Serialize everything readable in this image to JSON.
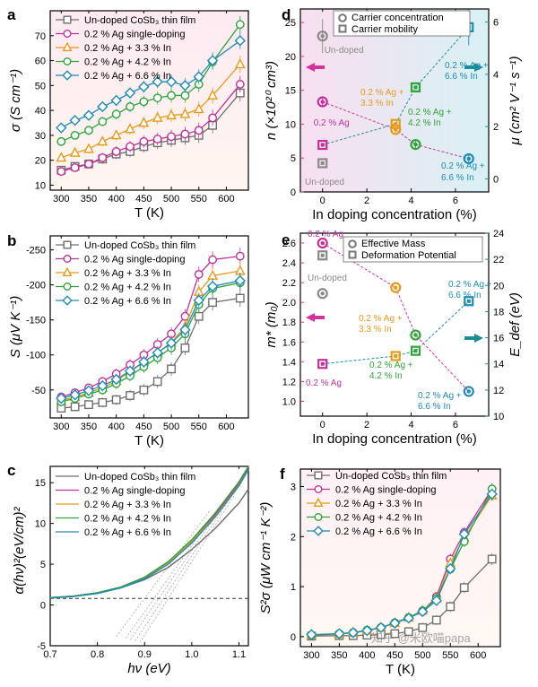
{
  "watermark": "知乎 @米欧喵papa",
  "colors": {
    "gray": "#6f6f6f",
    "magenta": "#c0329a",
    "orange": "#e79a19",
    "green": "#2ea43a",
    "blue": "#1f8bb5",
    "teal": "#1a8f96",
    "nAxis": "#d8309a",
    "muAxis": "#1a8f96"
  },
  "legend_series": [
    "Un-doped CoSb₃ thin film",
    "0.2 % Ag single-doping",
    "0.2 % Ag + 3.3 % In",
    "0.2 % Ag + 4.2 % In",
    "0.2 % Ag + 6.6 % In"
  ],
  "chart_data": [
    {
      "id": "a",
      "panel_label": "a",
      "type": "line",
      "xlabel": "T (K)",
      "ylabel": "σ (S cm⁻¹)",
      "xlim": [
        280,
        640
      ],
      "ylim": [
        8,
        80
      ],
      "xticks": [
        300,
        350,
        400,
        450,
        500,
        550,
        600
      ],
      "yticks": [
        10,
        20,
        30,
        40,
        50,
        60,
        70
      ],
      "x": [
        300,
        325,
        350,
        375,
        400,
        425,
        450,
        475,
        500,
        525,
        550,
        575,
        625
      ],
      "series": [
        {
          "name": "Un-doped CoSb₃ thin film",
          "values": [
            16,
            17.5,
            18.5,
            20.5,
            22.5,
            23.5,
            25.5,
            27,
            28,
            29,
            30,
            34,
            47
          ]
        },
        {
          "name": "0.2 % Ag single-doping",
          "values": [
            15.5,
            17,
            18.5,
            21,
            23.5,
            25.5,
            27.5,
            28.5,
            29.5,
            30.5,
            32,
            37,
            50.5
          ]
        },
        {
          "name": "0.2 % Ag + 3.3 % In",
          "values": [
            21,
            23,
            24.5,
            27.5,
            30,
            32.5,
            35,
            37,
            38,
            38.5,
            40.5,
            46,
            58.5
          ]
        },
        {
          "name": "0.2 % Ag + 4.2 % In",
          "values": [
            27.5,
            30,
            32,
            35.5,
            38.5,
            41.5,
            43.5,
            45,
            46,
            46,
            50.5,
            59.5,
            74.5
          ]
        },
        {
          "name": "0.2 % Ag + 6.6 % In",
          "values": [
            33,
            36,
            38,
            41.5,
            44,
            47,
            49.5,
            51.5,
            51.5,
            50,
            53.5,
            60,
            68
          ]
        }
      ]
    },
    {
      "id": "b",
      "panel_label": "b",
      "type": "line",
      "xlabel": "T (K)",
      "ylabel": "S (μV K⁻¹)",
      "xlim": [
        280,
        640
      ],
      "ylim": [
        -10,
        -270
      ],
      "xticks": [
        300,
        350,
        400,
        450,
        500,
        550,
        600
      ],
      "yticks": [
        -50,
        -100,
        -150,
        -200,
        -250
      ],
      "x": [
        300,
        325,
        350,
        375,
        400,
        425,
        450,
        475,
        500,
        525,
        550,
        575,
        625
      ],
      "series": [
        {
          "name": "Un-doped CoSb₃ thin film",
          "values": [
            -24,
            -26,
            -29,
            -32,
            -36,
            -42,
            -50,
            -62,
            -80,
            -110,
            -155,
            -175,
            -181
          ]
        },
        {
          "name": "0.2 % Ag single-doping",
          "values": [
            -40,
            -46,
            -53,
            -62,
            -73,
            -86,
            -100,
            -115,
            -130,
            -155,
            -215,
            -236,
            -241
          ]
        },
        {
          "name": "0.2 % Ag + 3.3 % In",
          "values": [
            -35,
            -40,
            -46,
            -53,
            -63,
            -76,
            -90,
            -103,
            -118,
            -140,
            -190,
            -213,
            -220
          ]
        },
        {
          "name": "0.2 % Ag + 4.2 % In",
          "values": [
            -33,
            -38,
            -44,
            -50,
            -59,
            -70,
            -83,
            -96,
            -110,
            -130,
            -172,
            -195,
            -203
          ]
        },
        {
          "name": "0.2 % Ag + 6.6 % In",
          "values": [
            -38,
            -43,
            -49,
            -56,
            -65,
            -77,
            -90,
            -103,
            -117,
            -136,
            -178,
            -198,
            -206
          ]
        }
      ]
    },
    {
      "id": "c",
      "panel_label": "c",
      "type": "line",
      "xlabel": "hν (eV)",
      "ylabel": "α(hν)²(eV/cm)²",
      "xlim": [
        0.7,
        1.12
      ],
      "ylim": [
        -5,
        17
      ],
      "xticks": [
        0.7,
        0.8,
        0.9,
        1.0,
        1.1
      ],
      "yticks": [
        -5,
        0,
        5,
        10,
        15
      ],
      "baseline": 0.8,
      "x": [
        0.7,
        0.75,
        0.8,
        0.85,
        0.9,
        0.95,
        1.0,
        1.05,
        1.1,
        1.12
      ],
      "series": [
        {
          "name": "Un-doped CoSb₃ thin film",
          "values": [
            0.9,
            1.1,
            1.5,
            2.1,
            3.1,
            4.6,
            6.8,
            9.4,
            12.5,
            14.2
          ]
        },
        {
          "name": "0.2 % Ag single-doping",
          "values": [
            0.85,
            1.1,
            1.5,
            2.2,
            3.4,
            5.3,
            7.9,
            11.1,
            14.9,
            16.9
          ]
        },
        {
          "name": "0.2 % Ag + 3.3 % In",
          "values": [
            0.85,
            1.05,
            1.45,
            2.15,
            3.3,
            5.2,
            7.8,
            10.9,
            14.7,
            16.6
          ]
        },
        {
          "name": "0.2 % Ag + 4.2 % In",
          "values": [
            0.9,
            1.1,
            1.5,
            2.2,
            3.4,
            5.3,
            8.0,
            11.3,
            15.1,
            17.0
          ]
        },
        {
          "name": "0.2 % Ag + 6.6 % In",
          "values": [
            0.85,
            1.05,
            1.4,
            2.1,
            3.2,
            5.0,
            7.6,
            10.8,
            14.6,
            16.6
          ]
        }
      ],
      "tangent_intercepts_eV": [
        0.9,
        0.92,
        0.93,
        0.94,
        0.95
      ]
    },
    {
      "id": "d",
      "panel_label": "d",
      "type": "scatter",
      "xlabel": "In doping concentration (%)",
      "ylabel": "n (×10²⁰ cm³)",
      "ylabel_right": "μ (cm² V⁻¹ s⁻¹)",
      "xlim": [
        -1,
        7.5
      ],
      "ylim": [
        0,
        27
      ],
      "ylim_right": [
        -0.5,
        6.5
      ],
      "xticks": [
        0,
        2,
        4,
        6
      ],
      "yticks": [
        0,
        5,
        10,
        15,
        20,
        25
      ],
      "yticks_right": [
        0,
        2,
        4,
        6
      ],
      "legend": [
        "Carrier concentration",
        "Carrier mobility"
      ],
      "undoped": {
        "n": 23,
        "n_err": 2.5,
        "mu": 0.6,
        "mu_err": 0.15
      },
      "series": [
        {
          "name": "Carrier concentration",
          "x": [
            0,
            3.3,
            4.2,
            6.6
          ],
          "values": [
            13.3,
            9.2,
            7.0,
            4.9
          ],
          "colors": [
            "magenta",
            "orange",
            "green",
            "blue"
          ]
        },
        {
          "name": "Carrier mobility",
          "x": [
            0,
            3.3,
            4.2,
            6.6
          ],
          "values": [
            1.3,
            2.1,
            3.5,
            5.8
          ],
          "colors": [
            "magenta",
            "orange",
            "green",
            "blue"
          ]
        }
      ],
      "annotations": [
        "Un-doped",
        "0.2 % Ag",
        "0.2 % Ag +",
        "3.3 % In",
        "0.2 % Ag +",
        "4.2 % In",
        "0.2 % Ag +",
        "6.6 % In",
        "Un-doped",
        "0.2 % Ag +",
        "6.6 % In"
      ]
    },
    {
      "id": "e",
      "panel_label": "e",
      "type": "scatter",
      "xlabel": "In doping concentration (%)",
      "ylabel": "m* (m₀)",
      "ylabel_right": "E_def (eV)",
      "xlim": [
        -1,
        7.5
      ],
      "ylim": [
        0.85,
        2.7
      ],
      "ylim_right": [
        10,
        24
      ],
      "xticks": [
        0,
        2,
        4,
        6
      ],
      "yticks": [
        1.0,
        1.2,
        1.4,
        1.6,
        1.8,
        2.0,
        2.2,
        2.4,
        2.6
      ],
      "yticks_right": [
        10,
        12,
        14,
        16,
        18,
        20,
        22,
        24
      ],
      "legend": [
        "Effective Mass",
        "Deformation Potential"
      ],
      "undoped": {
        "m": 2.09,
        "E": 22.3
      },
      "series": [
        {
          "name": "Effective Mass",
          "x": [
            0,
            3.3,
            4.2,
            6.6
          ],
          "values": [
            2.6,
            2.15,
            1.67,
            1.1
          ],
          "colors": [
            "magenta",
            "orange",
            "green",
            "blue"
          ]
        },
        {
          "name": "Deformation Potential",
          "x": [
            0,
            3.3,
            4.2,
            6.6
          ],
          "values": [
            14.0,
            14.6,
            15.0,
            18.8
          ],
          "colors": [
            "magenta",
            "orange",
            "green",
            "blue"
          ]
        }
      ],
      "annotations": [
        "0.2 % Ag",
        "Un-doped",
        "0.2 % Ag +",
        "3.3 % In",
        "0.2 % Ag",
        "0.2 % Ag +",
        "4.2 % In",
        "0.2 % Ag +",
        "6.6 % In",
        "0.2 % Ag +",
        "6.6 % In"
      ]
    },
    {
      "id": "f",
      "panel_label": "f",
      "type": "line",
      "xlabel": "T (K)",
      "ylabel": "S²σ (μW cm⁻¹ K⁻²)",
      "xlim": [
        280,
        640
      ],
      "ylim": [
        -0.2,
        3.35
      ],
      "xticks": [
        300,
        350,
        400,
        450,
        500,
        550,
        600
      ],
      "yticks": [
        0,
        1,
        2,
        3
      ],
      "x": [
        300,
        350,
        375,
        400,
        425,
        450,
        475,
        500,
        525,
        550,
        575,
        625
      ],
      "series": [
        {
          "name": "Un-doped CoSb₃ thin film",
          "values": [
            0.01,
            0.02,
            0.02,
            0.03,
            0.04,
            0.06,
            0.1,
            0.18,
            0.33,
            0.6,
            0.98,
            1.55
          ]
        },
        {
          "name": "0.2 % Ag single-doping",
          "values": [
            0.03,
            0.05,
            0.08,
            0.12,
            0.18,
            0.27,
            0.38,
            0.5,
            0.8,
            1.55,
            2.08,
            2.95
          ]
        },
        {
          "name": "0.2 % Ag + 3.3 % In",
          "values": [
            0.03,
            0.05,
            0.08,
            0.12,
            0.18,
            0.27,
            0.38,
            0.52,
            0.76,
            1.47,
            1.98,
            2.82
          ]
        },
        {
          "name": "0.2 % Ag + 4.2 % In",
          "values": [
            0.03,
            0.06,
            0.08,
            0.13,
            0.18,
            0.28,
            0.38,
            0.52,
            0.76,
            1.35,
            1.9,
            2.95
          ]
        },
        {
          "name": "0.2 % Ag + 6.6 % In",
          "values": [
            0.04,
            0.06,
            0.08,
            0.12,
            0.18,
            0.27,
            0.37,
            0.5,
            0.72,
            1.36,
            2.05,
            2.85
          ]
        }
      ]
    }
  ]
}
